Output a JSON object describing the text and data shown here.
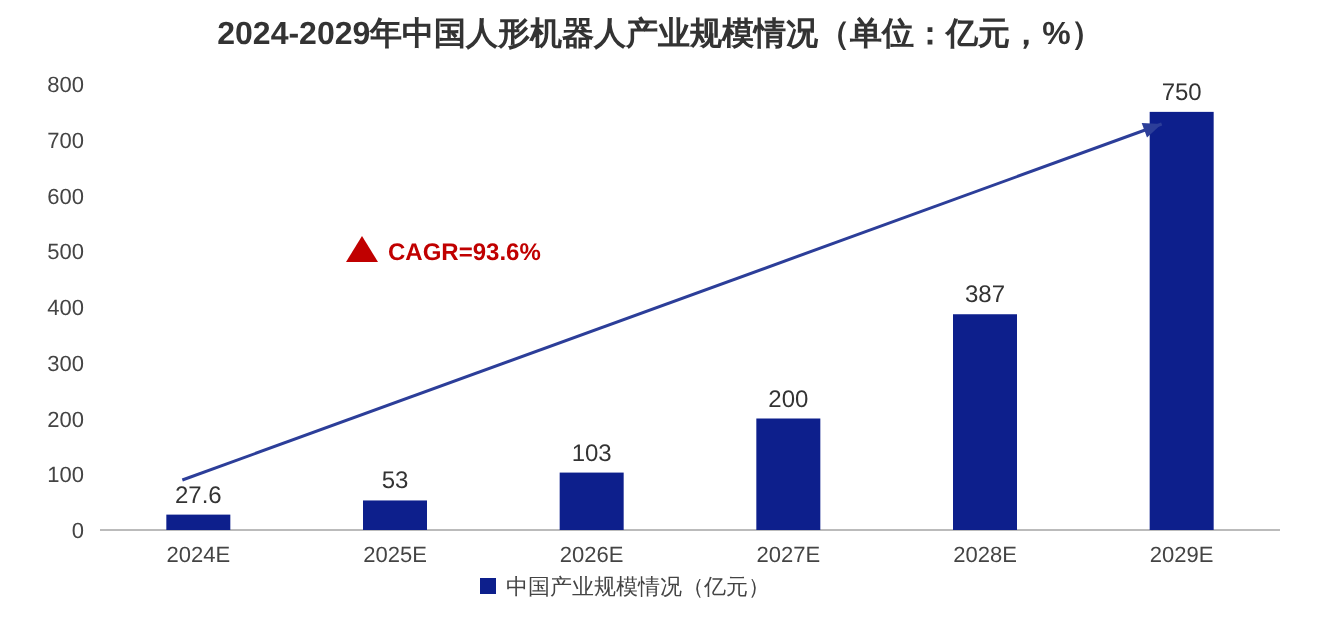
{
  "chart_data": {
    "type": "bar",
    "title": "2024-2029年中国人形机器人产业规模情况（单位：亿元，%）",
    "categories": [
      "2024E",
      "2025E",
      "2026E",
      "2027E",
      "2028E",
      "2029E"
    ],
    "series": [
      {
        "name": "中国产业规模情况（亿元）",
        "color": "#0d1f8c",
        "values": [
          27.6,
          53,
          103,
          200,
          387,
          750
        ]
      }
    ],
    "ylim": [
      0,
      800
    ],
    "yticks": [
      0,
      100,
      200,
      300,
      400,
      500,
      600,
      700,
      800
    ],
    "data_labels": true,
    "legend": "bottom",
    "grid": false,
    "annotations": [
      "CAGR=93.6%"
    ]
  }
}
